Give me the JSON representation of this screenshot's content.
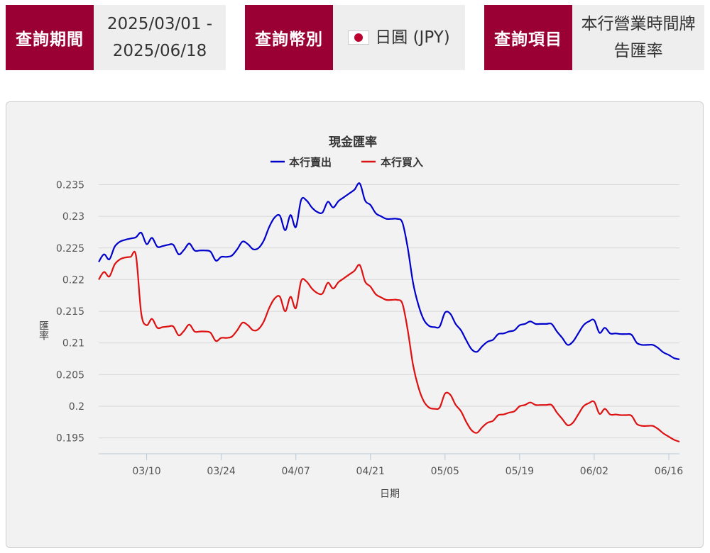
{
  "query": {
    "period_label": "查詢期間",
    "period_value_line1": "2025/03/01 -",
    "period_value_line2": "2025/06/18",
    "currency_label": "查詢幣別",
    "currency_value": "日圓 (JPY)",
    "currency_flag_icon": "japan-flag-icon",
    "item_label": "查詢項目",
    "item_value_line1": "本行營業時間牌",
    "item_value_line2": "告匯率"
  },
  "colors": {
    "brand": "#9b0035",
    "sell": "#0000cc",
    "buy": "#dd1111"
  },
  "chart_data": {
    "type": "line",
    "title": "現金匯率",
    "xlabel": "日期",
    "ylabel": "匯率",
    "legend_position": "top",
    "grid": true,
    "ylim": [
      0.1925,
      0.2355
    ],
    "xlim": [
      "2025-03-01",
      "2025-06-18"
    ],
    "yticks": [
      "0.235",
      "0.23",
      "0.225",
      "0.22",
      "0.215",
      "0.21",
      "0.205",
      "0.2",
      "0.195"
    ],
    "xticks": [
      {
        "date": "2025-03-10",
        "label": "03/10"
      },
      {
        "date": "2025-03-24",
        "label": "03/24"
      },
      {
        "date": "2025-04-07",
        "label": "04/07"
      },
      {
        "date": "2025-04-21",
        "label": "04/21"
      },
      {
        "date": "2025-05-05",
        "label": "05/05"
      },
      {
        "date": "2025-05-19",
        "label": "05/19"
      },
      {
        "date": "2025-06-02",
        "label": "06/02"
      },
      {
        "date": "2025-06-16",
        "label": "06/16"
      }
    ],
    "series": [
      {
        "name": "本行賣出",
        "color": "#0000cc",
        "points": [
          [
            "2025-03-01",
            0.2228
          ],
          [
            "2025-03-02",
            0.224
          ],
          [
            "2025-03-03",
            0.2232
          ],
          [
            "2025-03-04",
            0.2252
          ],
          [
            "2025-03-05",
            0.226
          ],
          [
            "2025-03-06",
            0.2263
          ],
          [
            "2025-03-07",
            0.2265
          ],
          [
            "2025-03-08",
            0.2267
          ],
          [
            "2025-03-09",
            0.2274
          ],
          [
            "2025-03-10",
            0.2256
          ],
          [
            "2025-03-11",
            0.2266
          ],
          [
            "2025-03-12",
            0.2252
          ],
          [
            "2025-03-13",
            0.2253
          ],
          [
            "2025-03-14",
            0.2255
          ],
          [
            "2025-03-15",
            0.2255
          ],
          [
            "2025-03-16",
            0.224
          ],
          [
            "2025-03-17",
            0.2247
          ],
          [
            "2025-03-18",
            0.2257
          ],
          [
            "2025-03-19",
            0.2246
          ],
          [
            "2025-03-20",
            0.2246
          ],
          [
            "2025-03-21",
            0.2246
          ],
          [
            "2025-03-22",
            0.2244
          ],
          [
            "2025-03-23",
            0.223
          ],
          [
            "2025-03-24",
            0.2236
          ],
          [
            "2025-03-25",
            0.2236
          ],
          [
            "2025-03-26",
            0.2238
          ],
          [
            "2025-03-27",
            0.2248
          ],
          [
            "2025-03-28",
            0.226
          ],
          [
            "2025-03-29",
            0.2256
          ],
          [
            "2025-03-30",
            0.2248
          ],
          [
            "2025-03-31",
            0.225
          ],
          [
            "2025-04-01",
            0.2262
          ],
          [
            "2025-04-02",
            0.2283
          ],
          [
            "2025-04-03",
            0.2298
          ],
          [
            "2025-04-04",
            0.2301
          ],
          [
            "2025-04-05",
            0.2278
          ],
          [
            "2025-04-06",
            0.2302
          ],
          [
            "2025-04-07",
            0.2283
          ],
          [
            "2025-04-08",
            0.2326
          ],
          [
            "2025-04-09",
            0.2325
          ],
          [
            "2025-04-10",
            0.2314
          ],
          [
            "2025-04-11",
            0.2307
          ],
          [
            "2025-04-12",
            0.2306
          ],
          [
            "2025-04-13",
            0.2323
          ],
          [
            "2025-04-14",
            0.2314
          ],
          [
            "2025-04-15",
            0.2324
          ],
          [
            "2025-04-16",
            0.233
          ],
          [
            "2025-04-17",
            0.2336
          ],
          [
            "2025-04-18",
            0.2342
          ],
          [
            "2025-04-19",
            0.2352
          ],
          [
            "2025-04-20",
            0.2325
          ],
          [
            "2025-04-21",
            0.2318
          ],
          [
            "2025-04-22",
            0.2305
          ],
          [
            "2025-04-23",
            0.23
          ],
          [
            "2025-04-24",
            0.2296
          ],
          [
            "2025-04-25",
            0.2296
          ],
          [
            "2025-04-26",
            0.2296
          ],
          [
            "2025-04-27",
            0.229
          ],
          [
            "2025-04-28",
            0.225
          ],
          [
            "2025-04-29",
            0.2195
          ],
          [
            "2025-04-30",
            0.216
          ],
          [
            "2025-05-01",
            0.2137
          ],
          [
            "2025-05-02",
            0.2127
          ],
          [
            "2025-05-03",
            0.2125
          ],
          [
            "2025-05-04",
            0.2126
          ],
          [
            "2025-05-05",
            0.2148
          ],
          [
            "2025-05-06",
            0.2146
          ],
          [
            "2025-05-07",
            0.213
          ],
          [
            "2025-05-08",
            0.212
          ],
          [
            "2025-05-09",
            0.2104
          ],
          [
            "2025-05-10",
            0.209
          ],
          [
            "2025-05-11",
            0.2086
          ],
          [
            "2025-05-12",
            0.2095
          ],
          [
            "2025-05-13",
            0.2102
          ],
          [
            "2025-05-14",
            0.2105
          ],
          [
            "2025-05-15",
            0.2114
          ],
          [
            "2025-05-16",
            0.2115
          ],
          [
            "2025-05-17",
            0.2118
          ],
          [
            "2025-05-18",
            0.212
          ],
          [
            "2025-05-19",
            0.2128
          ],
          [
            "2025-05-20",
            0.213
          ],
          [
            "2025-05-21",
            0.2134
          ],
          [
            "2025-05-22",
            0.213
          ],
          [
            "2025-05-23",
            0.213
          ],
          [
            "2025-05-24",
            0.213
          ],
          [
            "2025-05-25",
            0.213
          ],
          [
            "2025-05-26",
            0.2118
          ],
          [
            "2025-05-27",
            0.2108
          ],
          [
            "2025-05-28",
            0.2097
          ],
          [
            "2025-05-29",
            0.2102
          ],
          [
            "2025-05-30",
            0.2115
          ],
          [
            "2025-05-31",
            0.2128
          ],
          [
            "2025-06-01",
            0.2134
          ],
          [
            "2025-06-02",
            0.2136
          ],
          [
            "2025-06-03",
            0.2116
          ],
          [
            "2025-06-04",
            0.2124
          ],
          [
            "2025-06-05",
            0.2115
          ],
          [
            "2025-06-06",
            0.2115
          ],
          [
            "2025-06-07",
            0.2114
          ],
          [
            "2025-06-08",
            0.2114
          ],
          [
            "2025-06-09",
            0.2113
          ],
          [
            "2025-06-10",
            0.21
          ],
          [
            "2025-06-11",
            0.2097
          ],
          [
            "2025-06-12",
            0.2097
          ],
          [
            "2025-06-13",
            0.2097
          ],
          [
            "2025-06-14",
            0.2092
          ],
          [
            "2025-06-15",
            0.2085
          ],
          [
            "2025-06-16",
            0.2081
          ],
          [
            "2025-06-17",
            0.2076
          ],
          [
            "2025-06-18",
            0.2074
          ]
        ]
      },
      {
        "name": "本行買入",
        "color": "#dd1111",
        "points": [
          [
            "2025-03-01",
            0.22
          ],
          [
            "2025-03-02",
            0.2212
          ],
          [
            "2025-03-03",
            0.2205
          ],
          [
            "2025-03-04",
            0.2224
          ],
          [
            "2025-03-05",
            0.2232
          ],
          [
            "2025-03-06",
            0.2235
          ],
          [
            "2025-03-07",
            0.2236
          ],
          [
            "2025-03-08",
            0.2238
          ],
          [
            "2025-03-09",
            0.2146
          ],
          [
            "2025-03-10",
            0.2128
          ],
          [
            "2025-03-11",
            0.2138
          ],
          [
            "2025-03-12",
            0.2124
          ],
          [
            "2025-03-13",
            0.2125
          ],
          [
            "2025-03-14",
            0.2126
          ],
          [
            "2025-03-15",
            0.2126
          ],
          [
            "2025-03-16",
            0.2112
          ],
          [
            "2025-03-17",
            0.2119
          ],
          [
            "2025-03-18",
            0.2129
          ],
          [
            "2025-03-19",
            0.2118
          ],
          [
            "2025-03-20",
            0.2118
          ],
          [
            "2025-03-21",
            0.2118
          ],
          [
            "2025-03-22",
            0.2116
          ],
          [
            "2025-03-23",
            0.2103
          ],
          [
            "2025-03-24",
            0.2108
          ],
          [
            "2025-03-25",
            0.2108
          ],
          [
            "2025-03-26",
            0.211
          ],
          [
            "2025-03-27",
            0.212
          ],
          [
            "2025-03-28",
            0.2132
          ],
          [
            "2025-03-29",
            0.2128
          ],
          [
            "2025-03-30",
            0.212
          ],
          [
            "2025-03-31",
            0.2122
          ],
          [
            "2025-04-01",
            0.2134
          ],
          [
            "2025-04-02",
            0.2155
          ],
          [
            "2025-04-03",
            0.217
          ],
          [
            "2025-04-04",
            0.2173
          ],
          [
            "2025-04-05",
            0.215
          ],
          [
            "2025-04-06",
            0.2173
          ],
          [
            "2025-04-07",
            0.2155
          ],
          [
            "2025-04-08",
            0.2198
          ],
          [
            "2025-04-09",
            0.2197
          ],
          [
            "2025-04-10",
            0.2186
          ],
          [
            "2025-04-11",
            0.2179
          ],
          [
            "2025-04-12",
            0.2178
          ],
          [
            "2025-04-13",
            0.2195
          ],
          [
            "2025-04-14",
            0.2186
          ],
          [
            "2025-04-15",
            0.2196
          ],
          [
            "2025-04-16",
            0.2202
          ],
          [
            "2025-04-17",
            0.2208
          ],
          [
            "2025-04-18",
            0.2214
          ],
          [
            "2025-04-19",
            0.2223
          ],
          [
            "2025-04-20",
            0.2197
          ],
          [
            "2025-04-21",
            0.2189
          ],
          [
            "2025-04-22",
            0.2177
          ],
          [
            "2025-04-23",
            0.2172
          ],
          [
            "2025-04-24",
            0.2168
          ],
          [
            "2025-04-25",
            0.2168
          ],
          [
            "2025-04-26",
            0.2168
          ],
          [
            "2025-04-27",
            0.2162
          ],
          [
            "2025-04-28",
            0.212
          ],
          [
            "2025-04-29",
            0.2065
          ],
          [
            "2025-04-30",
            0.203
          ],
          [
            "2025-05-01",
            0.2008
          ],
          [
            "2025-05-02",
            0.1998
          ],
          [
            "2025-05-03",
            0.1996
          ],
          [
            "2025-05-04",
            0.1998
          ],
          [
            "2025-05-05",
            0.202
          ],
          [
            "2025-05-06",
            0.2018
          ],
          [
            "2025-05-07",
            0.2002
          ],
          [
            "2025-05-08",
            0.1992
          ],
          [
            "2025-05-09",
            0.1975
          ],
          [
            "2025-05-10",
            0.1962
          ],
          [
            "2025-05-11",
            0.1958
          ],
          [
            "2025-05-12",
            0.1967
          ],
          [
            "2025-05-13",
            0.1974
          ],
          [
            "2025-05-14",
            0.1977
          ],
          [
            "2025-05-15",
            0.1986
          ],
          [
            "2025-05-16",
            0.1987
          ],
          [
            "2025-05-17",
            0.199
          ],
          [
            "2025-05-18",
            0.1992
          ],
          [
            "2025-05-19",
            0.2
          ],
          [
            "2025-05-20",
            0.2002
          ],
          [
            "2025-05-21",
            0.2006
          ],
          [
            "2025-05-22",
            0.2002
          ],
          [
            "2025-05-23",
            0.2002
          ],
          [
            "2025-05-24",
            0.2002
          ],
          [
            "2025-05-25",
            0.2002
          ],
          [
            "2025-05-26",
            0.199
          ],
          [
            "2025-05-27",
            0.198
          ],
          [
            "2025-05-28",
            0.197
          ],
          [
            "2025-05-29",
            0.1974
          ],
          [
            "2025-05-30",
            0.1987
          ],
          [
            "2025-05-31",
            0.2
          ],
          [
            "2025-06-01",
            0.2005
          ],
          [
            "2025-06-02",
            0.2007
          ],
          [
            "2025-06-03",
            0.1988
          ],
          [
            "2025-06-04",
            0.1996
          ],
          [
            "2025-06-05",
            0.1987
          ],
          [
            "2025-06-06",
            0.1987
          ],
          [
            "2025-06-07",
            0.1986
          ],
          [
            "2025-06-08",
            0.1986
          ],
          [
            "2025-06-09",
            0.1985
          ],
          [
            "2025-06-10",
            0.1972
          ],
          [
            "2025-06-11",
            0.1969
          ],
          [
            "2025-06-12",
            0.1969
          ],
          [
            "2025-06-13",
            0.1969
          ],
          [
            "2025-06-14",
            0.1964
          ],
          [
            "2025-06-15",
            0.1957
          ],
          [
            "2025-06-16",
            0.1952
          ],
          [
            "2025-06-17",
            0.1947
          ],
          [
            "2025-06-18",
            0.1944
          ]
        ]
      }
    ]
  }
}
